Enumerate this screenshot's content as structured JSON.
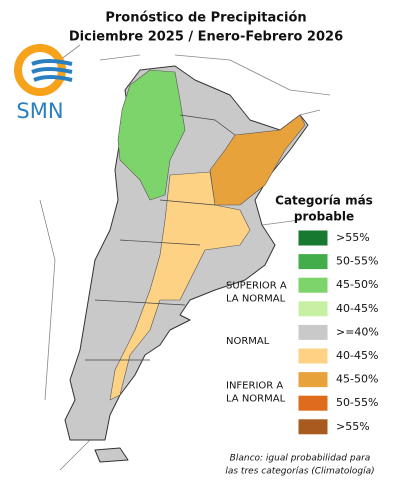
{
  "header": {
    "title": [
      "Pronóstico de Precipitación",
      "Diciembre 2025 / Enero-Febrero 2026"
    ]
  },
  "logo": {
    "text": "SMN"
  },
  "legend": {
    "title": [
      "Categoría más",
      "probable"
    ],
    "items": [
      {
        "label": ">55%",
        "color": "#17792f"
      },
      {
        "label": "50-55%",
        "color": "#43ad4c"
      },
      {
        "label": "45-50%",
        "color": "#7dd46a"
      },
      {
        "label": "40-45%",
        "color": "#c8f0a2"
      },
      {
        "label": ">=40%",
        "color": "#c9c9c9"
      },
      {
        "label": "40-45%",
        "color": "#fdd285"
      },
      {
        "label": "45-50%",
        "color": "#e7a23c"
      },
      {
        "label": "50-55%",
        "color": "#df6c1c"
      },
      {
        "label": ">55%",
        "color": "#a95a1e"
      }
    ],
    "groups": [
      [
        "SUPERIOR A",
        "LA NORMAL"
      ],
      [
        "NORMAL"
      ],
      [
        "INFERIOR A",
        "LA NORMAL"
      ]
    ]
  },
  "footnote": [
    "Blanco: igual probabilidad para",
    "las tres categorías (Climatología)"
  ]
}
